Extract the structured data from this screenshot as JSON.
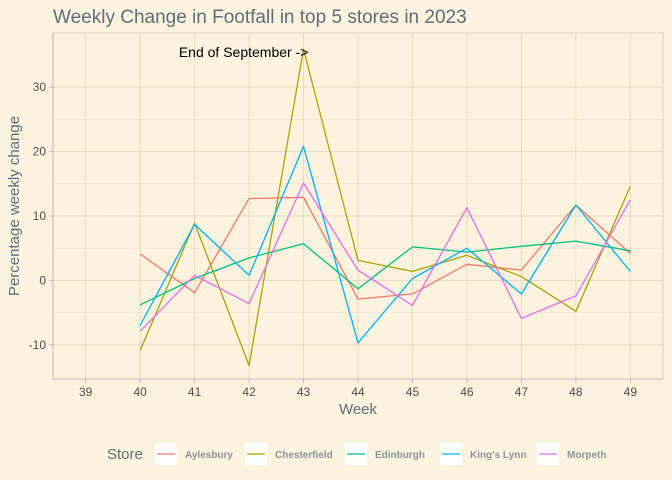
{
  "chart_data": {
    "type": "line",
    "title": "Weekly Change in Footfall in top 5 stores in 2023",
    "xlabel": "Week",
    "ylabel": "Percentage weekly change",
    "x": [
      39,
      40,
      41,
      42,
      43,
      44,
      45,
      46,
      47,
      48,
      49
    ],
    "xlim": [
      38.4,
      49.6
    ],
    "ylim": [
      -15.3,
      38.4
    ],
    "yticks": [
      -10,
      0,
      10,
      20,
      30
    ],
    "grid": true,
    "legend_title": "Store",
    "legend_position": "bottom",
    "annotation": {
      "text": "End of September ->",
      "x": 41.9,
      "y": 34.7
    },
    "series": [
      {
        "name": "Aylesbury",
        "color": "#f8766d",
        "x": [
          40,
          41,
          42,
          43,
          44,
          45,
          46,
          47,
          48,
          49
        ],
        "values": [
          4.1,
          -1.9,
          12.7,
          12.9,
          -2.9,
          -2.1,
          2.5,
          1.6,
          11.7,
          4.2
        ]
      },
      {
        "name": "Chesterfield",
        "color": "#a3a500",
        "x": [
          40,
          41,
          42,
          43,
          44,
          45,
          46,
          47,
          48,
          49
        ],
        "values": [
          -10.9,
          8.9,
          -13.2,
          35.9,
          3.1,
          1.4,
          3.9,
          0.6,
          -4.8,
          14.6
        ]
      },
      {
        "name": "Edinburgh",
        "color": "#00bf7d",
        "x": [
          40,
          41,
          42,
          43,
          44,
          45,
          46,
          47,
          48,
          49
        ],
        "values": [
          -3.8,
          0.3,
          3.5,
          5.7,
          -1.3,
          5.2,
          4.4,
          5.3,
          6.1,
          4.6
        ]
      },
      {
        "name": "King's Lynn",
        "color": "#00b0f6",
        "x": [
          40,
          41,
          42,
          43,
          44,
          45,
          46,
          47,
          48,
          49
        ],
        "values": [
          -7.0,
          8.7,
          0.8,
          20.8,
          -9.7,
          0.3,
          5.0,
          -2.1,
          11.7,
          1.4
        ]
      },
      {
        "name": "Morpeth",
        "color": "#e76bf3",
        "x": [
          40,
          41,
          42,
          43,
          44,
          45,
          46,
          47,
          48,
          49
        ],
        "values": [
          -7.9,
          0.8,
          -3.6,
          15.1,
          1.6,
          -3.9,
          11.3,
          -5.9,
          -2.4,
          12.5
        ]
      }
    ]
  }
}
